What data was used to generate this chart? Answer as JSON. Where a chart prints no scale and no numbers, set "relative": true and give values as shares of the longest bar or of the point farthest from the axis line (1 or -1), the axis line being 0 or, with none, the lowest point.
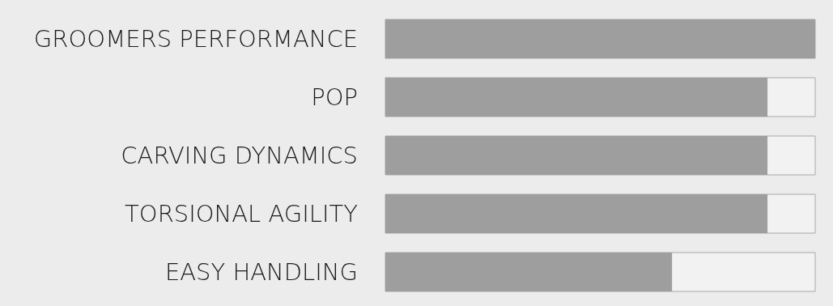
{
  "chart_data": {
    "type": "bar",
    "orientation": "horizontal",
    "relative": true,
    "categories": [
      "GROOMERS PERFORMANCE",
      "POP",
      "CARVING DYNAMICS",
      "TORSIONAL AGILITY",
      "EASY HANDLING"
    ],
    "values": [
      1,
      0.889,
      0.889,
      0.889,
      0.667
    ],
    "color": "#9e9e9e"
  }
}
